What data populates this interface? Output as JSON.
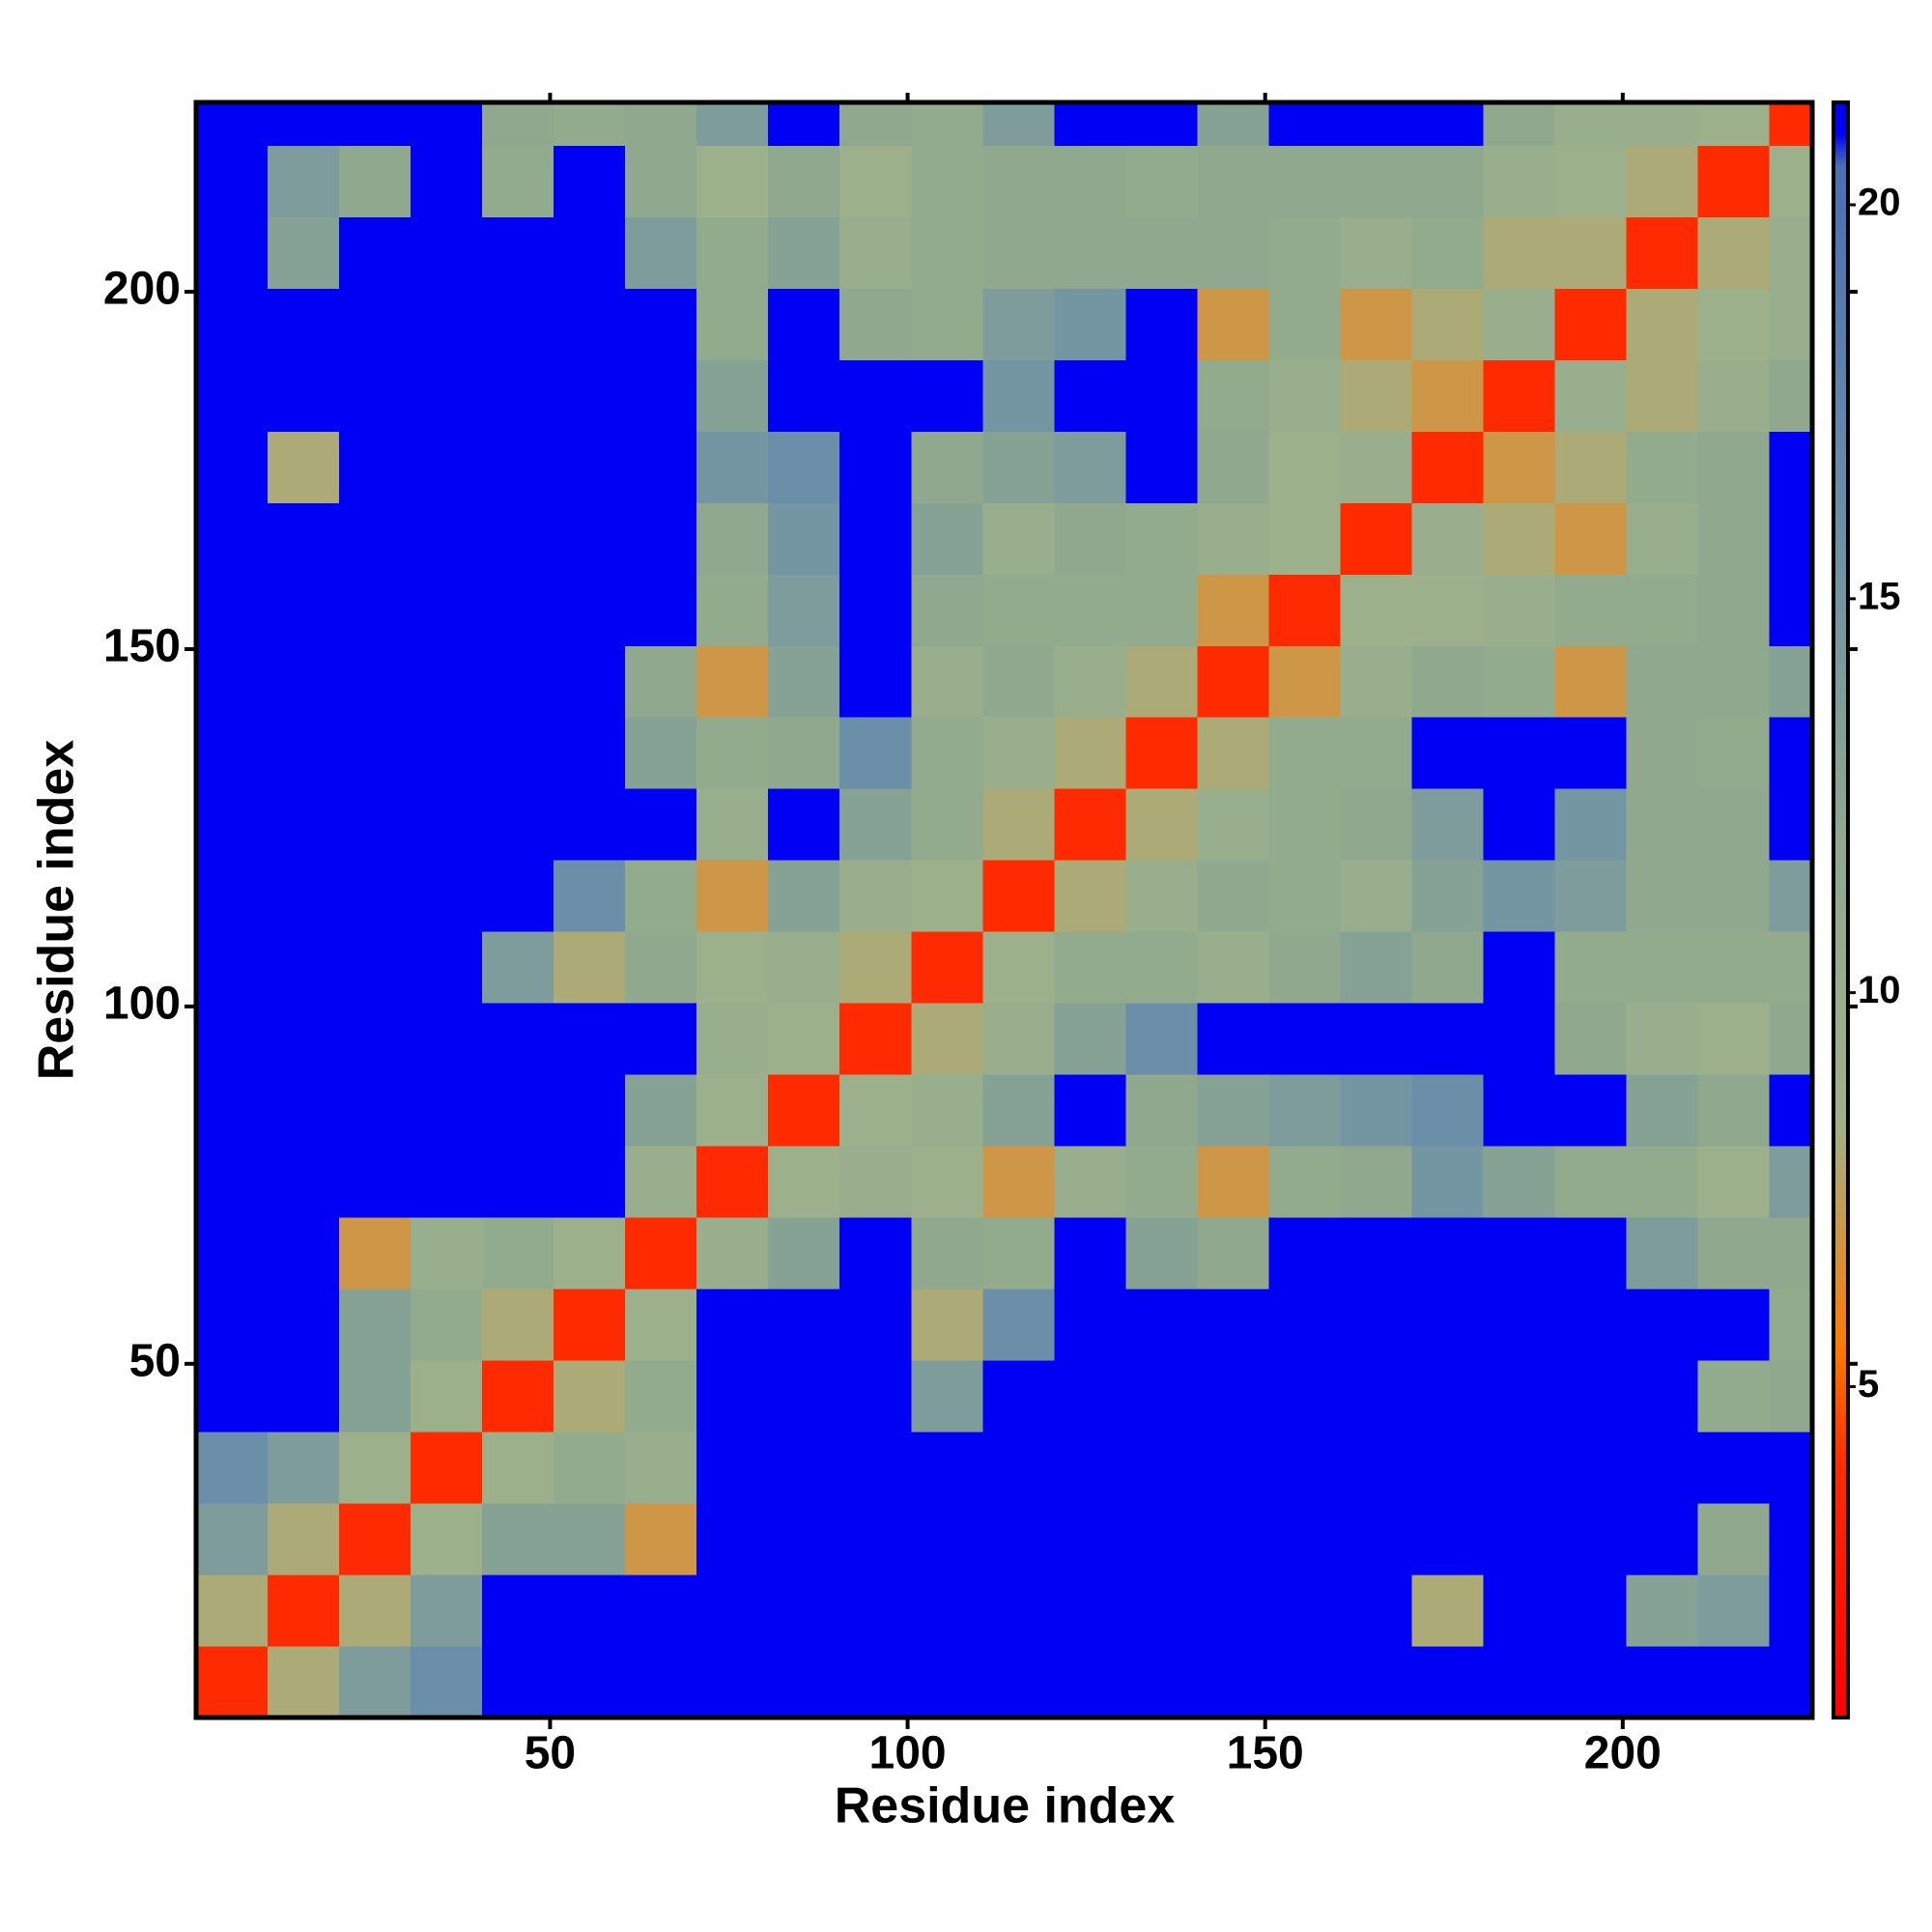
{
  "chart_data": {
    "type": "heatmap",
    "xlabel": "Residue index",
    "ylabel": "Residue index",
    "xlim": [
      0.5,
      226.5
    ],
    "ylim": [
      0.5,
      226.5
    ],
    "xticks": [
      50,
      100,
      150,
      200
    ],
    "yticks": [
      50,
      100,
      150,
      200
    ],
    "xbins": [
      0.5,
      10.5,
      20.5,
      30.5,
      40.5,
      50.5,
      60.5,
      70.5,
      80.5,
      90.5,
      100.5,
      110.5,
      120.5,
      130.5,
      140.5,
      150.5,
      160.5,
      170.5,
      180.5,
      190.5,
      200.5,
      210.5,
      220.5,
      226.5
    ],
    "ybins": [
      0.5,
      10.5,
      20.5,
      30.5,
      40.5,
      50.5,
      60.5,
      70.5,
      80.5,
      90.5,
      100.5,
      110.5,
      120.5,
      130.5,
      140.5,
      150.5,
      160.5,
      170.5,
      180.5,
      190.5,
      200.5,
      210.5,
      220.5,
      226.5
    ],
    "zlim": [
      0.8,
      21.3
    ],
    "zticks": [
      5,
      10,
      15,
      20
    ],
    "colorscale": [
      [
        0.8,
        "#ff0000"
      ],
      [
        4,
        "#ff2a00"
      ],
      [
        5.5,
        "#ff7a00"
      ],
      [
        8.4,
        "#9fb28a"
      ],
      [
        12,
        "#8fa88e"
      ],
      [
        16,
        "#6b8fa8"
      ],
      [
        20.5,
        "#4a6fb5"
      ],
      [
        20.9,
        "#0000f5"
      ]
    ],
    "z": [
      [
        4,
        8,
        14,
        16,
        21,
        21,
        21,
        21,
        21,
        21,
        21,
        21,
        21,
        21,
        21,
        21,
        21,
        21,
        21,
        21,
        21,
        21,
        21
      ],
      [
        8,
        4,
        8,
        14,
        21,
        21,
        21,
        21,
        21,
        21,
        21,
        21,
        21,
        21,
        21,
        21,
        21,
        8,
        21,
        21,
        13,
        14,
        21
      ],
      [
        14,
        8,
        4,
        9,
        13,
        13,
        7,
        21,
        21,
        21,
        21,
        21,
        21,
        21,
        21,
        21,
        21,
        21,
        21,
        21,
        21,
        12,
        21
      ],
      [
        16,
        14,
        9,
        4,
        9,
        11,
        10,
        21,
        21,
        21,
        21,
        21,
        21,
        21,
        21,
        21,
        21,
        21,
        21,
        21,
        21,
        21,
        21
      ],
      [
        21,
        21,
        13,
        9,
        4,
        8,
        11,
        21,
        21,
        21,
        14,
        21,
        21,
        21,
        21,
        21,
        21,
        21,
        21,
        21,
        21,
        11,
        12
      ],
      [
        21,
        21,
        13,
        11,
        8,
        4,
        9,
        21,
        21,
        21,
        8,
        16,
        21,
        21,
        21,
        21,
        21,
        21,
        21,
        21,
        21,
        21,
        11
      ],
      [
        21,
        21,
        7,
        10,
        11,
        9,
        4,
        10,
        13,
        21,
        12,
        11,
        21,
        13,
        12,
        21,
        21,
        21,
        21,
        21,
        14,
        12,
        12
      ],
      [
        21,
        21,
        21,
        21,
        21,
        21,
        10,
        4,
        9,
        10,
        9,
        7,
        10,
        11,
        7,
        11,
        12,
        15,
        13,
        11,
        11,
        9,
        14
      ],
      [
        21,
        21,
        21,
        21,
        21,
        21,
        13,
        9,
        4,
        9,
        10,
        13,
        21,
        12,
        13,
        14,
        15,
        16,
        21,
        21,
        13,
        12,
        21
      ],
      [
        21,
        21,
        21,
        21,
        21,
        21,
        21,
        10,
        9,
        4,
        8,
        10,
        13,
        16,
        21,
        21,
        21,
        21,
        21,
        12,
        10,
        9,
        12
      ],
      [
        21,
        21,
        21,
        21,
        14,
        8,
        12,
        9,
        10,
        8,
        4,
        9,
        11,
        11,
        10,
        12,
        13,
        12,
        21,
        11,
        11,
        11,
        11
      ],
      [
        21,
        21,
        21,
        21,
        21,
        16,
        11,
        7,
        13,
        10,
        9,
        4,
        8,
        10,
        12,
        11,
        10,
        13,
        15,
        14,
        12,
        12,
        14
      ],
      [
        21,
        21,
        21,
        21,
        21,
        21,
        21,
        10,
        21,
        13,
        11,
        8,
        4,
        8,
        10,
        11,
        12,
        14,
        21,
        15,
        12,
        12,
        21
      ],
      [
        21,
        21,
        21,
        21,
        21,
        21,
        13,
        11,
        12,
        16,
        11,
        10,
        8,
        4,
        8,
        11,
        11,
        21,
        21,
        21,
        12,
        11,
        21
      ],
      [
        21,
        21,
        21,
        21,
        21,
        21,
        12,
        7,
        13,
        21,
        10,
        12,
        10,
        8,
        4,
        7,
        10,
        12,
        11,
        7,
        12,
        12,
        13
      ],
      [
        21,
        21,
        21,
        21,
        21,
        21,
        21,
        11,
        14,
        21,
        12,
        11,
        11,
        11,
        7,
        4,
        9,
        9,
        10,
        11,
        11,
        12,
        21
      ],
      [
        21,
        21,
        21,
        21,
        21,
        21,
        21,
        12,
        15,
        21,
        13,
        10,
        12,
        11,
        10,
        9,
        4,
        10,
        8,
        7,
        10,
        12,
        21
      ],
      [
        21,
        8,
        21,
        21,
        21,
        21,
        21,
        15,
        16,
        21,
        12,
        13,
        14,
        21,
        12,
        9,
        10,
        4,
        7,
        8,
        11,
        12,
        21
      ],
      [
        21,
        21,
        21,
        21,
        21,
        21,
        21,
        13,
        21,
        21,
        21,
        15,
        21,
        21,
        11,
        10,
        8,
        7,
        4,
        10,
        8,
        10,
        12
      ],
      [
        21,
        21,
        21,
        21,
        21,
        21,
        21,
        11,
        21,
        12,
        11,
        14,
        15,
        21,
        7,
        11,
        7,
        8,
        10,
        4,
        8,
        9,
        10
      ],
      [
        21,
        13,
        21,
        21,
        21,
        21,
        14,
        11,
        13,
        10,
        11,
        12,
        12,
        12,
        12,
        11,
        10,
        11,
        8,
        8,
        4,
        8,
        10
      ],
      [
        21,
        14,
        12,
        21,
        11,
        21,
        12,
        9,
        12,
        9,
        11,
        12,
        12,
        11,
        12,
        12,
        12,
        12,
        10,
        9,
        8,
        4,
        9
      ],
      [
        21,
        21,
        21,
        21,
        12,
        11,
        12,
        14,
        21,
        12,
        11,
        14,
        21,
        21,
        13,
        21,
        21,
        21,
        12,
        10,
        10,
        9,
        4
      ]
    ]
  }
}
